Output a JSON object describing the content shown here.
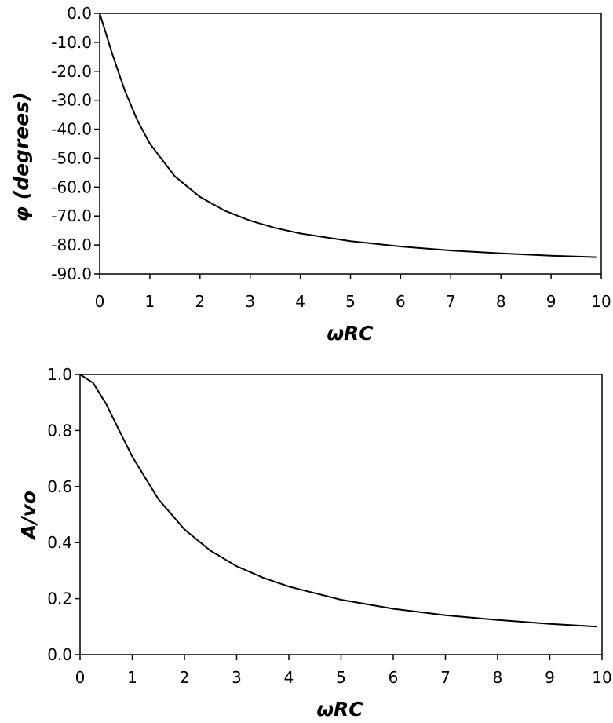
{
  "chart_data": [
    {
      "type": "line",
      "xlabel": "ωRC",
      "ylabel": "φ (degrees)",
      "xlim": [
        0,
        10
      ],
      "ylim": [
        -90,
        0
      ],
      "x_ticks": [
        "0",
        "1",
        "2",
        "3",
        "4",
        "5",
        "6",
        "7",
        "8",
        "9",
        "10"
      ],
      "y_ticks": [
        "0.0",
        "-10.0",
        "-20.0",
        "-30.0",
        "-40.0",
        "-50.0",
        "-60.0",
        "-70.0",
        "-80.0",
        "-90.0"
      ],
      "grid": false,
      "series": [
        {
          "x": [
            0,
            0.25,
            0.5,
            0.75,
            1,
            1.5,
            2,
            2.5,
            3,
            3.5,
            4,
            5,
            6,
            7,
            8,
            9,
            9.9
          ],
          "values": [
            0,
            -14.0,
            -26.6,
            -36.9,
            -45.0,
            -56.3,
            -63.4,
            -68.2,
            -71.6,
            -74.1,
            -76.0,
            -78.7,
            -80.5,
            -81.9,
            -82.9,
            -83.7,
            -84.2
          ]
        }
      ]
    },
    {
      "type": "line",
      "xlabel": "ωRC",
      "ylabel": "A/vo",
      "xlim": [
        0,
        10
      ],
      "ylim": [
        0,
        1
      ],
      "x_ticks": [
        "0",
        "1",
        "2",
        "3",
        "4",
        "5",
        "6",
        "7",
        "8",
        "9",
        "10"
      ],
      "y_ticks": [
        "1.0",
        "0.8",
        "0.6",
        "0.4",
        "0.2",
        "0.0"
      ],
      "grid": false,
      "series": [
        {
          "x": [
            0,
            0.25,
            0.5,
            0.75,
            1,
            1.5,
            2,
            2.5,
            3,
            3.5,
            4,
            5,
            6,
            7,
            8,
            9,
            9.9
          ],
          "values": [
            1.0,
            0.97,
            0.894,
            0.8,
            0.707,
            0.555,
            0.447,
            0.371,
            0.316,
            0.275,
            0.243,
            0.196,
            0.164,
            0.141,
            0.124,
            0.11,
            0.1
          ]
        }
      ]
    }
  ]
}
